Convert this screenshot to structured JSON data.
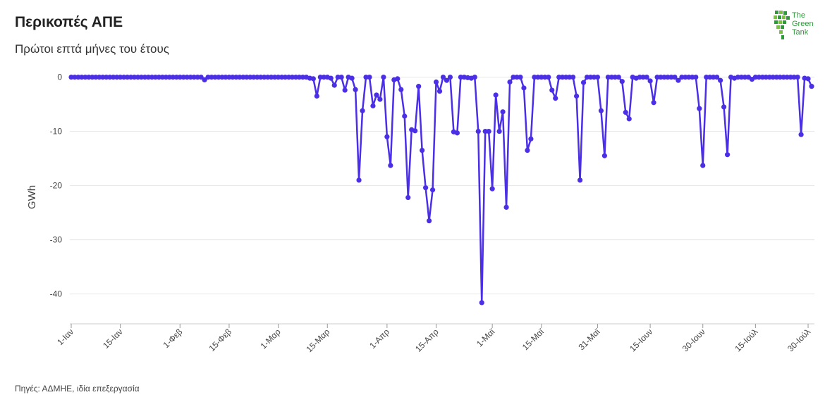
{
  "header": {
    "title": "Περικοπές ΑΠΕ",
    "subtitle": "Πρώτοι επτά μήνες του έτους"
  },
  "logo": {
    "line1": "The",
    "line2": "Green",
    "line3": "Tank",
    "color": "#2e9a3a"
  },
  "footer": {
    "source": "Πηγές: ΑΔΜΗΕ, ιδία επεξεργασία"
  },
  "chart_data": {
    "type": "line",
    "ylabel": "GWh",
    "xlabel": "",
    "ylim": [
      -45.5,
      1.5
    ],
    "xlim": [
      1,
      212
    ],
    "y_ticks": [
      0,
      -10,
      -20,
      -30,
      -40
    ],
    "y_tick_labels": [
      "0",
      "-10",
      "-20",
      "-30",
      "-40"
    ],
    "x_ticks": [
      1,
      15,
      32,
      46,
      60,
      74,
      91,
      105,
      121,
      135,
      151,
      166,
      181,
      196,
      211
    ],
    "x_tick_labels": [
      "1-Ιαν",
      "15-Ιαν",
      "1-Φεβ",
      "15-Φεβ",
      "1-Μαρ",
      "15-Μαρ",
      "1-Απρ",
      "15-Απρ",
      "1-Μαϊ",
      "15-Μαϊ",
      "31-Μαϊ",
      "15-Ιουν",
      "30-Ιουν",
      "15-Ιούλ",
      "30-Ιούλ"
    ],
    "grid": true,
    "line_color": "#4a2fe6",
    "series": [
      {
        "values": [
          0,
          0,
          0,
          0,
          0,
          0,
          0,
          0,
          0,
          0,
          0,
          0,
          0,
          0,
          0,
          0,
          0,
          0,
          0,
          0,
          0,
          0,
          0,
          0,
          0,
          0,
          0,
          0,
          0,
          0,
          0,
          0,
          0,
          0,
          0,
          0,
          0,
          0,
          -0.5,
          0,
          0,
          0,
          0,
          0,
          0,
          0,
          0,
          0,
          0,
          0,
          0,
          0,
          0,
          0,
          0,
          0,
          0,
          0,
          0,
          0,
          0,
          0,
          0,
          0,
          0,
          0,
          0,
          0,
          -0.2,
          -0.3,
          -3.5,
          0,
          0,
          0,
          -0.2,
          -1.5,
          0,
          0,
          -2.4,
          0,
          -0.2,
          -2.3,
          -19,
          -6.2,
          0,
          0,
          -5.3,
          -3.3,
          -4.1,
          0,
          -11,
          -16.3,
          -0.5,
          -0.3,
          -2.3,
          -7.2,
          -22.2,
          -9.7,
          -9.9,
          -1.7,
          -13.5,
          -20.4,
          -26.5,
          -20.8,
          -0.9,
          -2.6,
          0,
          -0.6,
          0,
          -10.1,
          -10.3,
          0,
          0,
          -0.1,
          -0.2,
          0,
          -10,
          -41.6,
          -10,
          -10,
          -20.6,
          -3.3,
          -10,
          -6.4,
          -24,
          -0.9,
          0,
          0,
          0,
          -2,
          -13.5,
          -11.4,
          0,
          0,
          0,
          0,
          0,
          -2.4,
          -3.9,
          0,
          0,
          0,
          0,
          0,
          -3.5,
          -19,
          -1,
          0,
          0,
          0,
          0,
          -6.2,
          -14.5,
          0,
          0,
          0,
          0,
          -0.8,
          -6.5,
          -7.7,
          0,
          -0.2,
          0,
          0,
          0,
          -0.7,
          -4.7,
          0,
          0,
          0,
          0,
          0,
          0,
          -0.6,
          0,
          0,
          0,
          0,
          0,
          -5.8,
          -16.3,
          0,
          0,
          0,
          0,
          -0.6,
          -5.5,
          -14.3,
          0,
          -0.2,
          0,
          0,
          0,
          0,
          -0.4,
          0,
          0,
          0,
          0,
          0,
          0,
          0,
          0,
          0,
          0,
          0,
          0,
          0,
          -10.6,
          -0.2,
          -0.3,
          -1.7
        ]
      }
    ]
  }
}
